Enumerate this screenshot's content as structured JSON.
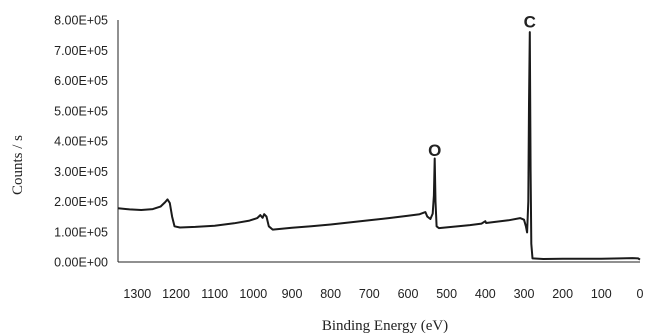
{
  "chart_data": {
    "type": "line",
    "title": "",
    "xlabel": "Binding Energy (eV)",
    "ylabel": "Counts / s",
    "x_reversed": true,
    "xlim": [
      1350,
      0
    ],
    "ylim": [
      0,
      800000
    ],
    "grid": false,
    "legend": "none",
    "x_ticks": [
      1300,
      1200,
      1100,
      1000,
      900,
      800,
      700,
      600,
      500,
      400,
      300,
      200,
      100,
      0
    ],
    "x_tick_labels": [
      "1300",
      "1200",
      "1100",
      "1000",
      "900",
      "800",
      "700",
      "600",
      "500",
      "400",
      "300",
      "200",
      "100",
      "0"
    ],
    "y_ticks": [
      0,
      100000,
      200000,
      300000,
      400000,
      500000,
      600000,
      700000,
      800000
    ],
    "y_tick_labels": [
      "0.00E+00",
      "1.00E+05",
      "2.00E+05",
      "3.00E+05",
      "4.00E+05",
      "5.00E+05",
      "6.00E+05",
      "7.00E+05",
      "8.00E+05"
    ],
    "annotations": [
      {
        "text": "O",
        "x": 531,
        "y": 350000
      },
      {
        "text": "C",
        "x": 285,
        "y": 775000
      }
    ],
    "series": [
      {
        "color": "#1a1a1a",
        "points": [
          [
            1350,
            178000
          ],
          [
            1320,
            174000
          ],
          [
            1290,
            172000
          ],
          [
            1260,
            175000
          ],
          [
            1240,
            183000
          ],
          [
            1228,
            198000
          ],
          [
            1222,
            207000
          ],
          [
            1216,
            195000
          ],
          [
            1210,
            150000
          ],
          [
            1204,
            118000
          ],
          [
            1190,
            114000
          ],
          [
            1150,
            116000
          ],
          [
            1100,
            120000
          ],
          [
            1050,
            128000
          ],
          [
            1010,
            137000
          ],
          [
            990,
            145000
          ],
          [
            982,
            155000
          ],
          [
            976,
            146000
          ],
          [
            972,
            158000
          ],
          [
            966,
            150000
          ],
          [
            960,
            118000
          ],
          [
            950,
            107000
          ],
          [
            900,
            113000
          ],
          [
            850,
            118000
          ],
          [
            800,
            124000
          ],
          [
            750,
            131000
          ],
          [
            700,
            138000
          ],
          [
            650,
            145000
          ],
          [
            600,
            153000
          ],
          [
            570,
            158000
          ],
          [
            555,
            165000
          ],
          [
            550,
            150000
          ],
          [
            542,
            142000
          ],
          [
            536,
            160000
          ],
          [
            533,
            220000
          ],
          [
            531,
            342000
          ],
          [
            529,
            200000
          ],
          [
            526,
            118000
          ],
          [
            520,
            112000
          ],
          [
            480,
            117000
          ],
          [
            440,
            122000
          ],
          [
            410,
            127000
          ],
          [
            400,
            135000
          ],
          [
            398,
            129000
          ],
          [
            380,
            132000
          ],
          [
            340,
            138000
          ],
          [
            310,
            145000
          ],
          [
            300,
            140000
          ],
          [
            295,
            118000
          ],
          [
            292,
            98000
          ],
          [
            289,
            200000
          ],
          [
            287,
            520000
          ],
          [
            285,
            760000
          ],
          [
            283,
            300000
          ],
          [
            281,
            60000
          ],
          [
            278,
            12000
          ],
          [
            250,
            10000
          ],
          [
            200,
            11000
          ],
          [
            150,
            11000
          ],
          [
            100,
            11000
          ],
          [
            50,
            12000
          ],
          [
            20,
            13000
          ],
          [
            5,
            12000
          ],
          [
            0,
            8000
          ]
        ]
      }
    ]
  }
}
